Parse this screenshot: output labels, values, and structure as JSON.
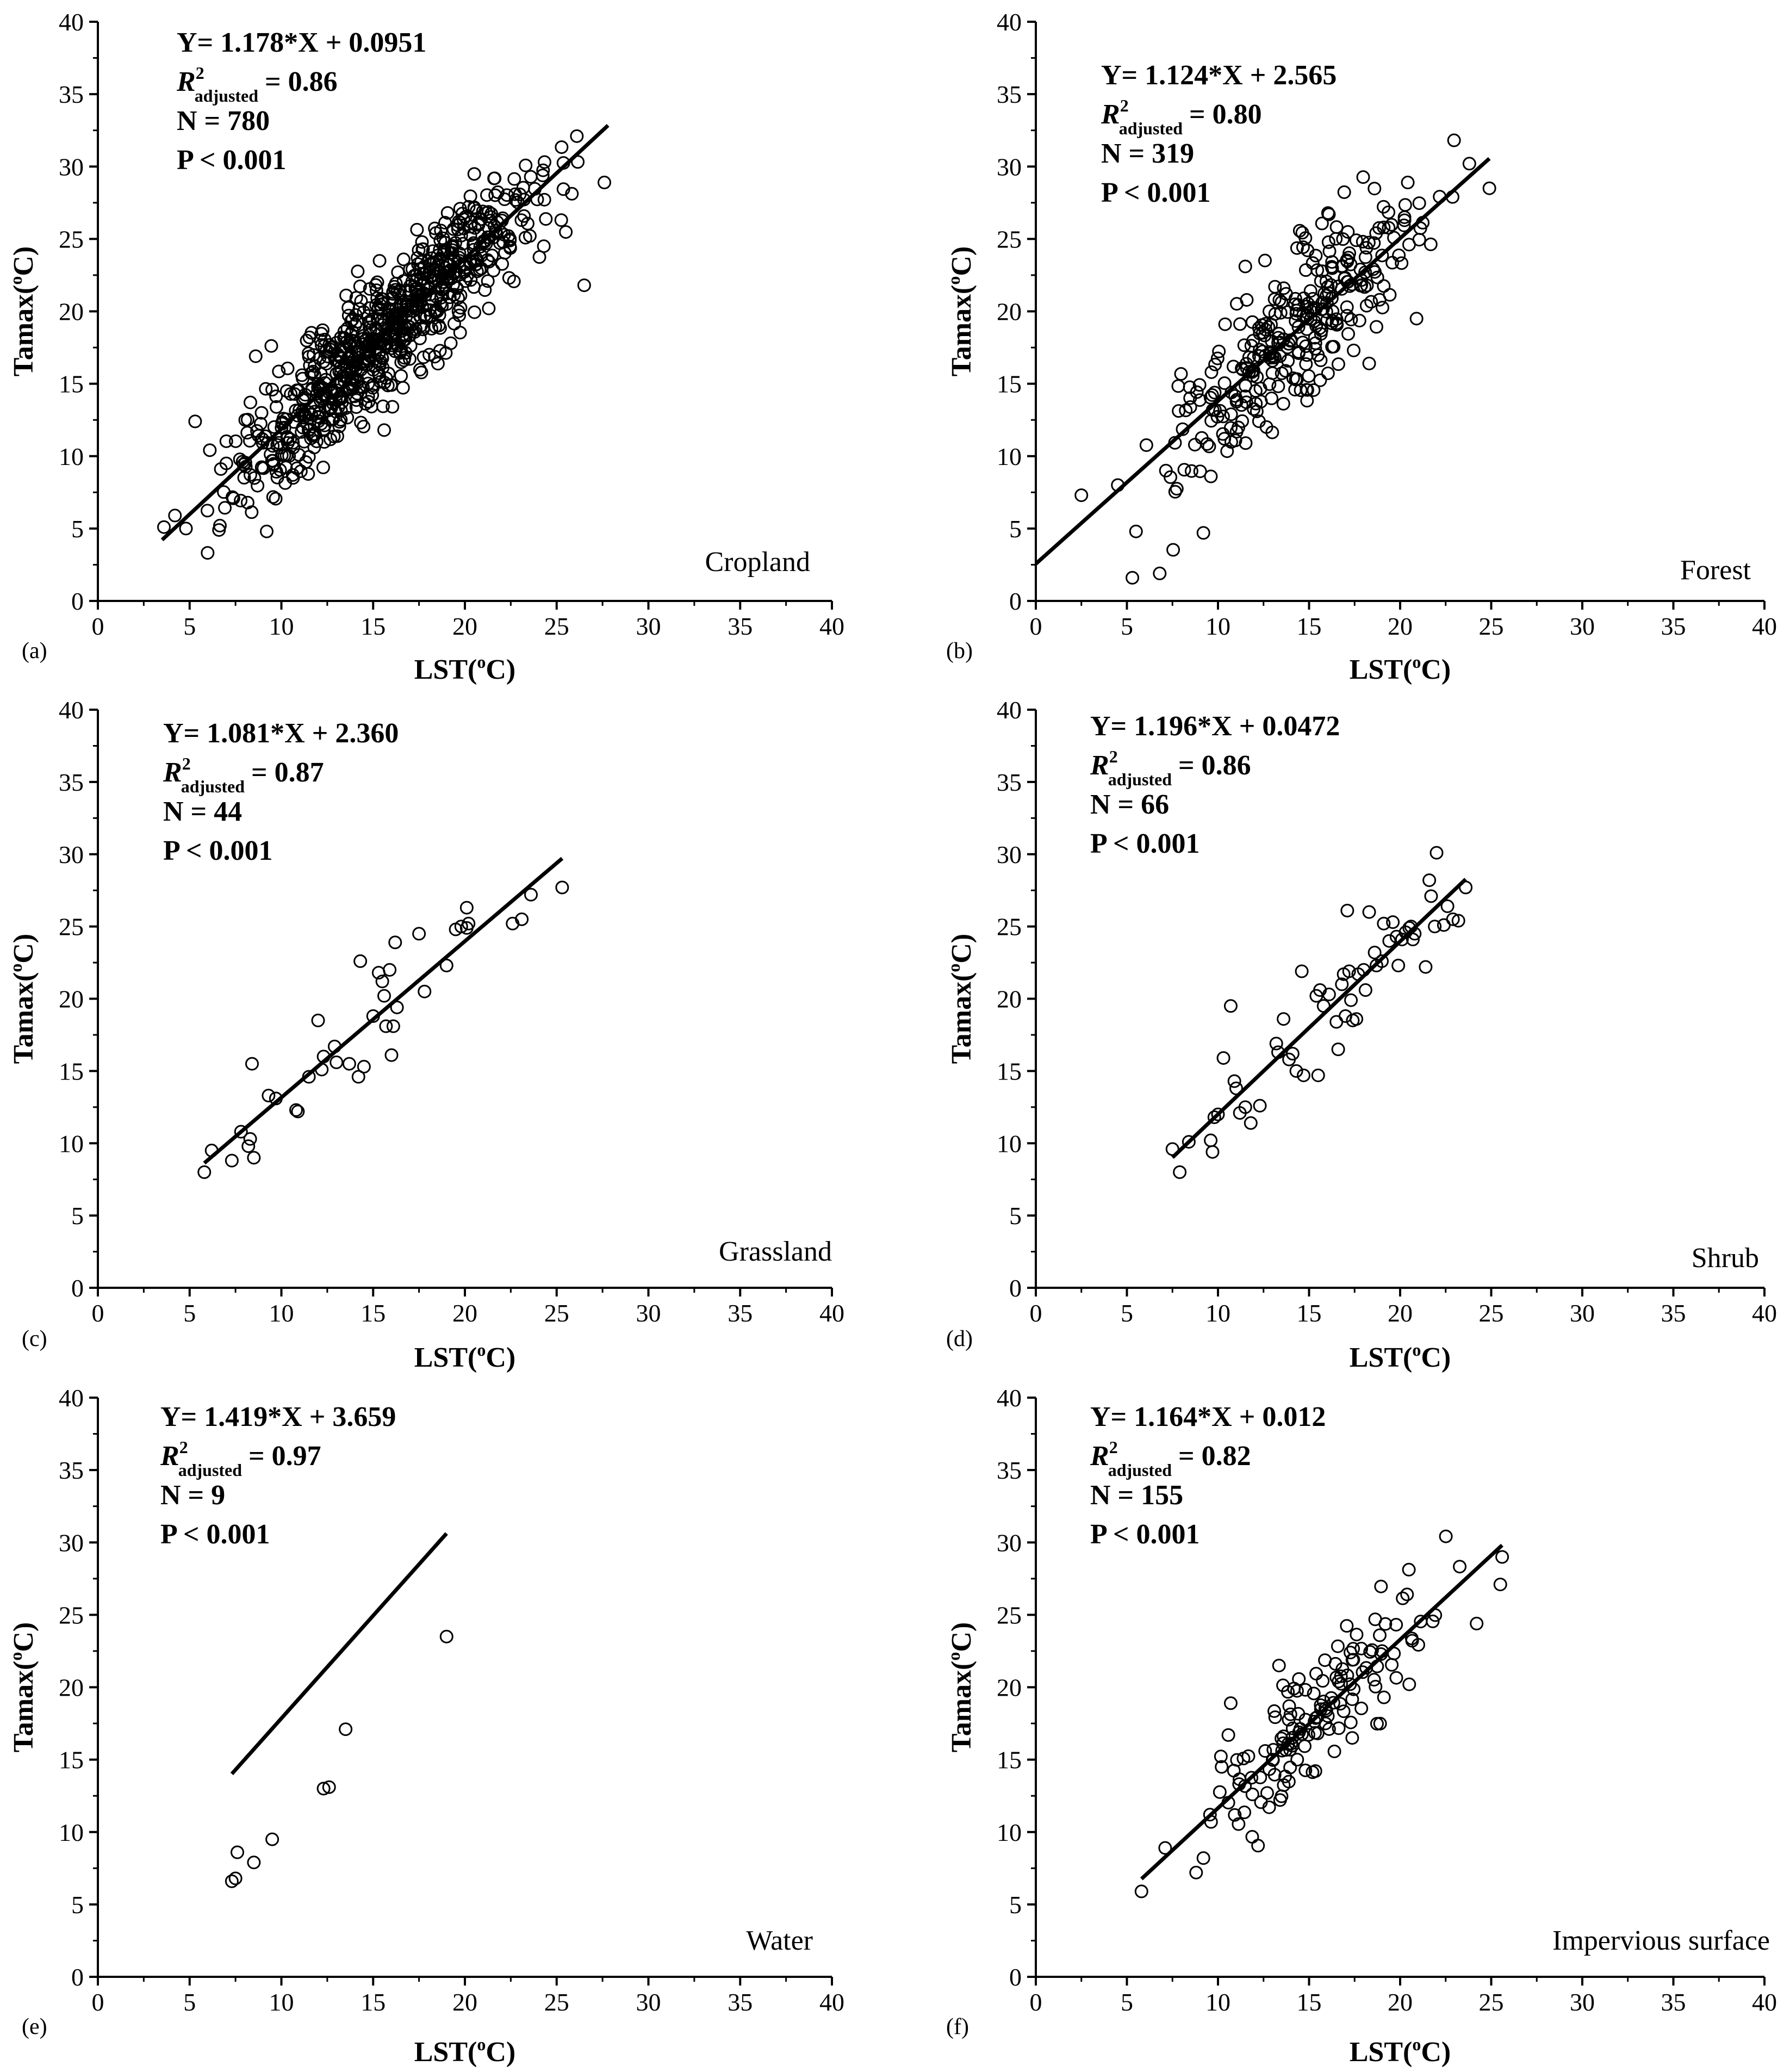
{
  "chart_data": [
    {
      "type": "scatter",
      "panel": "(a)",
      "class_label": "Cropland",
      "xlabel_main": "LST(",
      "xlabel_sup": "o",
      "xlabel_end": "C)",
      "ylabel_main": "Tamax(",
      "ylabel_sup": "o",
      "ylabel_end": "C)",
      "xlim": [
        0,
        40
      ],
      "ylim": [
        0,
        40
      ],
      "xticks": [
        "0",
        "5",
        "10",
        "15",
        "20",
        "25",
        "30",
        "35",
        "40"
      ],
      "yticks": [
        "0",
        "5",
        "10",
        "15",
        "20",
        "25",
        "30",
        "35",
        "40"
      ],
      "equation": "Y= 1.178*X + 0.0951",
      "r2_label": "R",
      "r2_sup": "2",
      "r2_sub": "adjusted",
      "r2_value": "= 0.86",
      "n_text": "N = 780",
      "p_text": "P < 0.001",
      "fit": {
        "slope": 1.178,
        "intercept": 0.0951,
        "x_range": [
          3.5,
          27.8
        ]
      },
      "n": 780,
      "scatter_sd": 2.1,
      "x_range_points": [
        3.5,
        27.6
      ],
      "points": [
        [
          3.6,
          5.1
        ],
        [
          4.2,
          5.9
        ],
        [
          4.8,
          5.0
        ],
        [
          5.3,
          12.4
        ],
        [
          26.1,
          32.1
        ],
        [
          26.5,
          21.8
        ],
        [
          27.6,
          28.9
        ],
        [
          9.2,
          4.8
        ],
        [
          15.6,
          11.8
        ],
        [
          21.3,
          20.2
        ],
        [
          6.6,
          4.9
        ],
        [
          8.6,
          16.9
        ],
        [
          24.3,
          24.5
        ]
      ]
    },
    {
      "type": "scatter",
      "panel": "(b)",
      "class_label": "Forest",
      "xlabel_main": "LST(",
      "xlabel_sup": "o",
      "xlabel_end": "C)",
      "ylabel_main": "Tamax(",
      "ylabel_sup": "o",
      "ylabel_end": "C)",
      "xlim": [
        0,
        40
      ],
      "ylim": [
        0,
        40
      ],
      "xticks": [
        "0",
        "5",
        "10",
        "15",
        "20",
        "25",
        "30",
        "35",
        "40"
      ],
      "yticks": [
        "0",
        "5",
        "10",
        "15",
        "20",
        "25",
        "30",
        "35",
        "40"
      ],
      "equation": "Y= 1.124*X + 2.565",
      "r2_label": "R",
      "r2_sup": "2",
      "r2_sub": "adjusted",
      "r2_value": "= 0.80",
      "n_text": "N = 319",
      "p_text": "P < 0.001",
      "fit": {
        "slope": 1.124,
        "intercept": 2.565,
        "x_range": [
          0,
          24.9
        ]
      },
      "n": 319,
      "scatter_sd": 2.6,
      "x_range_points": [
        4.0,
        24.9
      ],
      "points": [
        [
          2.5,
          7.3
        ],
        [
          5.3,
          1.6
        ],
        [
          5.5,
          4.8
        ],
        [
          6.8,
          1.9
        ],
        [
          9.2,
          4.7
        ],
        [
          11.5,
          23.1
        ],
        [
          20.9,
          19.5
        ],
        [
          23.8,
          30.2
        ],
        [
          24.9,
          28.5
        ],
        [
          4.5,
          8.0
        ],
        [
          18.3,
          16.4
        ]
      ]
    },
    {
      "type": "scatter",
      "panel": "(c)",
      "class_label": "Grassland",
      "xlabel_main": "LST(",
      "xlabel_sup": "o",
      "xlabel_end": "C)",
      "ylabel_main": "Tamax(",
      "ylabel_sup": "o",
      "ylabel_end": "C)",
      "xlim": [
        0,
        40
      ],
      "ylim": [
        0,
        40
      ],
      "xticks": [
        "0",
        "5",
        "10",
        "15",
        "20",
        "25",
        "30",
        "35",
        "40"
      ],
      "yticks": [
        "0",
        "5",
        "10",
        "15",
        "20",
        "25",
        "30",
        "35",
        "40"
      ],
      "equation": "Y= 1.081*X + 2.360",
      "r2_label": "R",
      "r2_sup": "2",
      "r2_sub": "adjusted",
      "r2_value": "= 0.87",
      "n_text": "N = 44",
      "p_text": "P < 0.001",
      "fit": {
        "slope": 1.081,
        "intercept": 2.36,
        "x_range": [
          5.8,
          25.3
        ]
      },
      "n": 44,
      "scatter_sd": 0,
      "points": [
        [
          5.8,
          8.0
        ],
        [
          6.2,
          9.5
        ],
        [
          7.3,
          8.8
        ],
        [
          7.8,
          10.8
        ],
        [
          8.2,
          9.8
        ],
        [
          8.3,
          10.3
        ],
        [
          8.5,
          9.0
        ],
        [
          8.4,
          15.5
        ],
        [
          9.3,
          13.3
        ],
        [
          9.7,
          13.1
        ],
        [
          10.8,
          12.3
        ],
        [
          10.9,
          12.2
        ],
        [
          11.5,
          14.6
        ],
        [
          12.0,
          18.5
        ],
        [
          12.2,
          15.1
        ],
        [
          12.3,
          16.0
        ],
        [
          12.9,
          16.7
        ],
        [
          13.0,
          15.6
        ],
        [
          13.7,
          15.5
        ],
        [
          14.2,
          14.6
        ],
        [
          14.5,
          15.3
        ],
        [
          14.3,
          22.6
        ],
        [
          15.0,
          18.8
        ],
        [
          15.3,
          21.8
        ],
        [
          15.5,
          21.2
        ],
        [
          15.6,
          20.2
        ],
        [
          15.7,
          18.1
        ],
        [
          15.9,
          22.0
        ],
        [
          16.0,
          16.1
        ],
        [
          16.2,
          23.9
        ],
        [
          16.1,
          18.1
        ],
        [
          16.3,
          19.4
        ],
        [
          17.5,
          24.5
        ],
        [
          17.8,
          20.5
        ],
        [
          19.0,
          22.3
        ],
        [
          19.5,
          24.8
        ],
        [
          19.8,
          25.0
        ],
        [
          20.1,
          26.3
        ],
        [
          20.2,
          25.2
        ],
        [
          22.6,
          25.2
        ],
        [
          23.1,
          25.5
        ],
        [
          23.6,
          27.2
        ],
        [
          25.3,
          27.7
        ],
        [
          20.1,
          24.9
        ]
      ]
    },
    {
      "type": "scatter",
      "panel": "(d)",
      "class_label": "Shrub",
      "xlabel_main": "LST(",
      "xlabel_sup": "o",
      "xlabel_end": "C)",
      "ylabel_main": "Tamax(",
      "ylabel_sup": "o",
      "ylabel_end": "C)",
      "xlim": [
        0,
        40
      ],
      "ylim": [
        0,
        40
      ],
      "xticks": [
        "0",
        "5",
        "10",
        "15",
        "20",
        "25",
        "30",
        "35",
        "40"
      ],
      "yticks": [
        "0",
        "5",
        "10",
        "15",
        "20",
        "25",
        "30",
        "35",
        "40"
      ],
      "equation": "Y= 1.196*X + 0.0472",
      "r2_label": "R",
      "r2_sup": "2",
      "r2_sub": "adjusted",
      "r2_value": "= 0.86",
      "n_text": "N = 66",
      "p_text": "P < 0.001",
      "fit": {
        "slope": 1.196,
        "intercept": 0.0472,
        "x_range": [
          7.5,
          23.6
        ]
      },
      "n": 66,
      "scatter_sd": 0,
      "points": [
        [
          7.5,
          9.6
        ],
        [
          7.9,
          8.0
        ],
        [
          8.4,
          10.1
        ],
        [
          9.6,
          10.2
        ],
        [
          9.7,
          9.4
        ],
        [
          9.8,
          11.8
        ],
        [
          10.0,
          12.0
        ],
        [
          10.3,
          15.9
        ],
        [
          10.7,
          19.5
        ],
        [
          10.9,
          14.3
        ],
        [
          11.0,
          13.8
        ],
        [
          11.2,
          12.1
        ],
        [
          11.5,
          12.5
        ],
        [
          11.8,
          11.4
        ],
        [
          12.3,
          12.6
        ],
        [
          13.2,
          16.9
        ],
        [
          13.3,
          16.3
        ],
        [
          13.6,
          18.6
        ],
        [
          13.9,
          15.8
        ],
        [
          14.1,
          16.2
        ],
        [
          14.3,
          15.0
        ],
        [
          14.6,
          21.9
        ],
        [
          14.7,
          14.7
        ],
        [
          15.5,
          14.7
        ],
        [
          15.4,
          20.2
        ],
        [
          15.6,
          20.6
        ],
        [
          15.8,
          19.5
        ],
        [
          16.1,
          20.3
        ],
        [
          16.5,
          18.4
        ],
        [
          16.6,
          16.5
        ],
        [
          16.9,
          21.7
        ],
        [
          17.0,
          18.8
        ],
        [
          17.1,
          26.1
        ],
        [
          17.2,
          21.9
        ],
        [
          17.3,
          19.9
        ],
        [
          17.4,
          18.5
        ],
        [
          17.6,
          18.6
        ],
        [
          17.7,
          21.7
        ],
        [
          18.1,
          20.6
        ],
        [
          18.3,
          26.0
        ],
        [
          18.6,
          23.2
        ],
        [
          18.7,
          22.3
        ],
        [
          19.0,
          22.6
        ],
        [
          19.1,
          25.2
        ],
        [
          19.4,
          24.0
        ],
        [
          19.6,
          25.3
        ],
        [
          19.8,
          24.3
        ],
        [
          19.9,
          22.3
        ],
        [
          20.1,
          24.1
        ],
        [
          20.5,
          24.9
        ],
        [
          20.6,
          25.0
        ],
        [
          20.7,
          24.1
        ],
        [
          20.8,
          24.5
        ],
        [
          21.4,
          22.2
        ],
        [
          21.6,
          28.2
        ],
        [
          21.7,
          27.1
        ],
        [
          21.9,
          25.0
        ],
        [
          22.0,
          30.1
        ],
        [
          22.4,
          25.1
        ],
        [
          22.6,
          26.4
        ],
        [
          22.9,
          25.5
        ],
        [
          23.2,
          25.4
        ],
        [
          23.6,
          27.7
        ],
        [
          18.0,
          22.0
        ],
        [
          20.3,
          24.6
        ],
        [
          16.8,
          21.0
        ]
      ]
    },
    {
      "type": "scatter",
      "panel": "(e)",
      "class_label": "Water",
      "xlabel_main": "LST(",
      "xlabel_sup": "o",
      "xlabel_end": "C)",
      "ylabel_main": "Tamax(",
      "ylabel_sup": "o",
      "ylabel_end": "C)",
      "xlim": [
        0,
        40
      ],
      "ylim": [
        0,
        40
      ],
      "xticks": [
        "0",
        "5",
        "10",
        "15",
        "20",
        "25",
        "30",
        "35",
        "40"
      ],
      "yticks": [
        "0",
        "5",
        "10",
        "15",
        "20",
        "25",
        "30",
        "35",
        "40"
      ],
      "equation": "Y= 1.419*X + 3.659",
      "r2_label": "R",
      "r2_sup": "2",
      "r2_sub": "adjusted",
      "r2_value": "= 0.97",
      "n_text": "N = 9",
      "p_text": "P < 0.001",
      "fit": {
        "slope": 1.419,
        "intercept": 3.659,
        "x_range": [
          7.3,
          19.0
        ]
      },
      "n": 9,
      "scatter_sd": 0,
      "points": [
        [
          7.3,
          6.6
        ],
        [
          7.5,
          6.8
        ],
        [
          7.6,
          8.6
        ],
        [
          8.5,
          7.9
        ],
        [
          9.5,
          9.5
        ],
        [
          12.3,
          13.0
        ],
        [
          12.6,
          13.1
        ],
        [
          13.5,
          17.1
        ],
        [
          19.0,
          23.5
        ]
      ]
    },
    {
      "type": "scatter",
      "panel": "(f)",
      "class_label": "Impervious surface",
      "xlabel_main": "LST(",
      "xlabel_sup": "o",
      "xlabel_end": "C)",
      "ylabel_main": "Tamax(",
      "ylabel_sup": "o",
      "ylabel_end": "C)",
      "xlim": [
        0,
        40
      ],
      "ylim": [
        0,
        40
      ],
      "xticks": [
        "0",
        "5",
        "10",
        "15",
        "20",
        "25",
        "30",
        "35",
        "40"
      ],
      "yticks": [
        "0",
        "5",
        "10",
        "15",
        "20",
        "25",
        "30",
        "35",
        "40"
      ],
      "equation": "Y= 1.164*X + 0.012",
      "r2_label": "R",
      "r2_sup": "2",
      "r2_sub": "adjusted",
      "r2_value": "= 0.82",
      "n_text": "N = 155",
      "p_text": "P < 0.001",
      "fit": {
        "slope": 1.164,
        "intercept": 0.012,
        "x_range": [
          5.8,
          25.6
        ]
      },
      "n": 155,
      "scatter_sd": 2.3,
      "x_range_points": [
        7.0,
        25.6
      ],
      "points": [
        [
          5.8,
          5.9
        ],
        [
          7.1,
          8.9
        ],
        [
          8.8,
          7.2
        ],
        [
          9.2,
          8.2
        ],
        [
          10.2,
          14.5
        ],
        [
          10.7,
          18.9
        ],
        [
          20.5,
          20.2
        ],
        [
          24.2,
          24.4
        ],
        [
          25.6,
          29.0
        ],
        [
          25.5,
          27.1
        ]
      ]
    }
  ]
}
